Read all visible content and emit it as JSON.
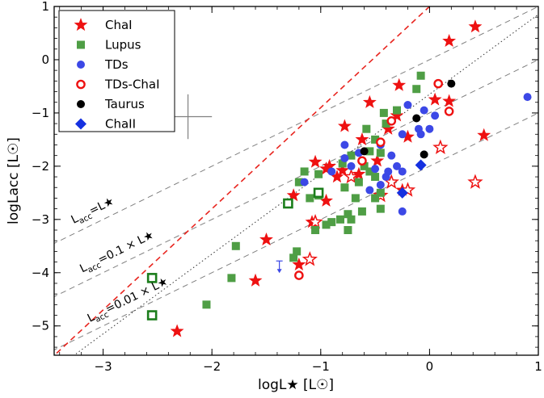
{
  "chart_data": {
    "type": "scatter",
    "title": "",
    "xlabel": "logL★ [L☉]",
    "ylabel": "logLacc [L☉]",
    "xlim": [
      -3.45,
      1.0
    ],
    "ylim": [
      -5.55,
      1.0
    ],
    "x_ticks": [
      -3,
      -2,
      -1,
      0,
      1
    ],
    "y_ticks": [
      -5,
      -4,
      -3,
      -2,
      -1,
      0,
      1
    ],
    "x_tick_labels": [
      "−3",
      "−2",
      "−1",
      "0",
      "1"
    ],
    "y_tick_labels": [
      "−5",
      "−4",
      "−3",
      "−2",
      "−1",
      "0",
      "1"
    ],
    "legend_position": "top-left",
    "reference_lines": [
      {
        "label_main": "L",
        "label_sub": "acc",
        "label_rest": "=L★",
        "offset": 0,
        "style": "dashed",
        "color": "#808080"
      },
      {
        "label_main": "L",
        "label_sub": "acc",
        "label_rest": "=0.1 × L★",
        "offset": -1,
        "style": "dashed",
        "color": "#808080"
      },
      {
        "label_main": "L",
        "label_sub": "acc",
        "label_rest": "=0.01 × L★",
        "offset": -2,
        "style": "dashed",
        "color": "#808080"
      }
    ],
    "fit_line": {
      "slope": 1.9,
      "intercept": 1.0,
      "color": "#e8251f",
      "style": "dashed"
    },
    "dotted_line": {
      "slope": 1.5,
      "intercept": -0.65,
      "color": "#333333",
      "style": "dotted"
    },
    "error_cross": {
      "x": -2.22,
      "y": -1.07,
      "dx": 0.22,
      "dy": 0.42
    },
    "series": [
      {
        "name": "ChaI",
        "marker": "star",
        "filled": true,
        "color": "#ee1111",
        "points": [
          [
            0.42,
            0.62
          ],
          [
            0.18,
            0.35
          ],
          [
            -0.28,
            -0.48
          ],
          [
            0.18,
            -0.78
          ],
          [
            0.05,
            -0.75
          ],
          [
            -0.3,
            -1.05
          ],
          [
            -0.55,
            -0.8
          ],
          [
            -0.38,
            -1.3
          ],
          [
            -0.78,
            -1.25
          ],
          [
            -0.62,
            -1.5
          ],
          [
            -0.2,
            -1.45
          ],
          [
            -0.48,
            -1.9
          ],
          [
            -1.05,
            -1.92
          ],
          [
            -0.92,
            -2.0
          ],
          [
            -0.95,
            -2.05
          ],
          [
            -0.8,
            -2.08
          ],
          [
            -0.65,
            -2.15
          ],
          [
            -0.85,
            -2.2
          ],
          [
            -1.25,
            -2.55
          ],
          [
            -0.95,
            -2.65
          ],
          [
            -0.25,
            -2.45
          ],
          [
            -1.08,
            -3.05
          ],
          [
            -1.5,
            -3.38
          ],
          [
            -1.6,
            -4.15
          ],
          [
            -1.2,
            -3.85
          ],
          [
            -2.32,
            -5.1
          ],
          [
            0.5,
            -1.42
          ]
        ]
      },
      {
        "name": "ChaI",
        "marker": "star",
        "filled": false,
        "color": "#ee1111",
        "points": [
          [
            0.1,
            -1.65
          ],
          [
            -0.35,
            -2.3
          ],
          [
            -0.2,
            -2.45
          ],
          [
            -0.45,
            -2.55
          ],
          [
            0.42,
            -2.3
          ],
          [
            -1.05,
            -3.05
          ],
          [
            -1.1,
            -3.75
          ],
          [
            -0.72,
            -2.2
          ]
        ]
      },
      {
        "name": "Lupus",
        "marker": "square",
        "filled": true,
        "color": "#4f9e45",
        "points": [
          [
            -0.08,
            -0.3
          ],
          [
            -0.12,
            -0.55
          ],
          [
            -0.42,
            -1.0
          ],
          [
            -0.4,
            -1.2
          ],
          [
            -0.58,
            -1.3
          ],
          [
            -0.5,
            -1.5
          ],
          [
            -0.55,
            -1.72
          ],
          [
            -0.45,
            -1.75
          ],
          [
            -0.6,
            -2.0
          ],
          [
            -0.55,
            -2.1
          ],
          [
            -0.72,
            -1.8
          ],
          [
            -0.8,
            -1.95
          ],
          [
            -0.65,
            -2.3
          ],
          [
            -0.78,
            -2.4
          ],
          [
            -1.02,
            -2.15
          ],
          [
            -1.15,
            -2.1
          ],
          [
            -1.2,
            -2.3
          ],
          [
            -1.02,
            -2.55
          ],
          [
            -1.1,
            -2.6
          ],
          [
            -0.68,
            -2.6
          ],
          [
            -0.5,
            -2.6
          ],
          [
            -0.45,
            -2.8
          ],
          [
            -0.62,
            -2.85
          ],
          [
            -0.75,
            -2.9
          ],
          [
            -0.82,
            -3.0
          ],
          [
            -0.9,
            -3.05
          ],
          [
            -0.95,
            -3.1
          ],
          [
            -1.05,
            -3.2
          ],
          [
            -0.75,
            -3.2
          ],
          [
            -1.22,
            -3.6
          ],
          [
            -1.25,
            -3.72
          ],
          [
            -1.78,
            -3.5
          ],
          [
            -1.82,
            -4.1
          ],
          [
            -2.05,
            -4.6
          ],
          [
            -0.72,
            -3.0
          ],
          [
            -0.5,
            -2.2
          ],
          [
            -0.45,
            -2.5
          ],
          [
            -0.3,
            -0.95
          ]
        ]
      },
      {
        "name": "Lupus",
        "marker": "square",
        "filled": false,
        "color": "#1b7d1b",
        "points": [
          [
            -2.55,
            -4.1
          ],
          [
            -2.55,
            -4.8
          ],
          [
            -1.3,
            -2.7
          ],
          [
            -1.02,
            -2.5
          ]
        ]
      },
      {
        "name": "TDs",
        "marker": "circle",
        "filled": true,
        "color": "#3c48e6",
        "points": [
          [
            -0.2,
            -0.85
          ],
          [
            -0.05,
            -0.95
          ],
          [
            0.05,
            -1.05
          ],
          [
            -0.1,
            -1.3
          ],
          [
            -0.25,
            -1.4
          ],
          [
            -0.45,
            -1.6
          ],
          [
            -0.65,
            -1.75
          ],
          [
            -0.78,
            -1.6
          ],
          [
            -0.78,
            -1.85
          ],
          [
            -0.72,
            -2.0
          ],
          [
            -0.5,
            -2.05
          ],
          [
            -0.35,
            -1.8
          ],
          [
            -0.3,
            -2.0
          ],
          [
            -0.25,
            -2.1
          ],
          [
            -0.38,
            -2.1
          ],
          [
            -0.4,
            -2.2
          ],
          [
            -0.45,
            -2.35
          ],
          [
            -0.9,
            -2.1
          ],
          [
            -1.15,
            -2.3
          ],
          [
            -0.25,
            -2.85
          ],
          [
            -0.55,
            -2.45
          ],
          [
            0.9,
            -0.7
          ],
          [
            0.0,
            -1.3
          ],
          [
            -0.08,
            -1.4
          ]
        ]
      },
      {
        "name": "TDs-ChaI",
        "marker": "circle",
        "filled": false,
        "color": "#ee1111",
        "points": [
          [
            0.08,
            -0.45
          ],
          [
            0.18,
            -0.97
          ],
          [
            -0.35,
            -1.15
          ],
          [
            -0.45,
            -1.55
          ],
          [
            -0.62,
            -1.9
          ],
          [
            -1.2,
            -4.05
          ]
        ]
      },
      {
        "name": "Taurus",
        "marker": "circle",
        "filled": true,
        "color": "#000000",
        "points": [
          [
            0.2,
            -0.45
          ],
          [
            -0.12,
            -1.1
          ],
          [
            -0.6,
            -1.72
          ],
          [
            -0.05,
            -1.78
          ]
        ]
      },
      {
        "name": "ChaII",
        "marker": "diamond",
        "filled": true,
        "color": "#1530e0",
        "points": [
          [
            -0.08,
            -1.98
          ],
          [
            -0.25,
            -2.5
          ]
        ]
      }
    ],
    "upper_limits": [
      {
        "x": -1.38,
        "y": -3.78,
        "color": "#3c48e6"
      }
    ],
    "legend": [
      {
        "label": "ChaI",
        "marker": "star",
        "filled": true,
        "color": "#ee1111"
      },
      {
        "label": "Lupus",
        "marker": "square",
        "filled": true,
        "color": "#4f9e45"
      },
      {
        "label": "TDs",
        "marker": "circle",
        "filled": true,
        "color": "#3c48e6"
      },
      {
        "label": "TDs-ChaI",
        "marker": "circle",
        "filled": false,
        "color": "#ee1111"
      },
      {
        "label": "Taurus",
        "marker": "circle",
        "filled": true,
        "color": "#000000"
      },
      {
        "label": "ChaII",
        "marker": "diamond",
        "filled": true,
        "color": "#1530e0"
      }
    ]
  }
}
